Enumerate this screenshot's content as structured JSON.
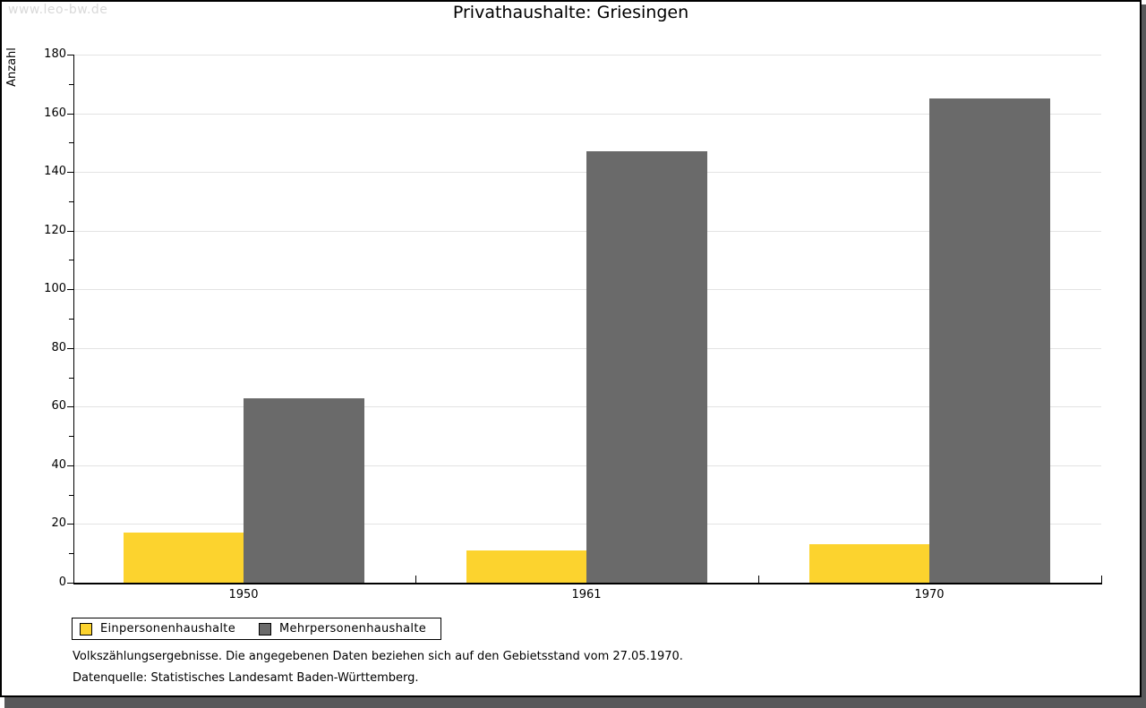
{
  "watermark": "www.leo-bw.de",
  "chart_data": {
    "type": "bar",
    "title": "Privathaushalte: Griesingen",
    "ylabel": "Anzahl",
    "xlabel": "",
    "categories": [
      "1950",
      "1961",
      "1970"
    ],
    "series": [
      {
        "name": "Einpersonenhaushalte",
        "color": "#fcd32e",
        "values": [
          17,
          11,
          13
        ]
      },
      {
        "name": "Mehrpersonenhaushalte",
        "color": "#6a6a6a",
        "values": [
          63,
          147,
          165
        ]
      }
    ],
    "ylim": [
      0,
      180
    ],
    "y_tick_step": 20,
    "y_minor_tick_step": 10,
    "grid": true,
    "legend_position": "bottom-left"
  },
  "footnotes": {
    "line1": "Volkszählungsergebnisse. Die angegebenen Daten beziehen sich auf den Gebietsstand vom 27.05.1970.",
    "line2": "Datenquelle: Statistisches Landesamt Baden-Württemberg."
  },
  "colors": {
    "frame_border": "#000000",
    "drop_shadow": "#58585a",
    "gridline": "#e3e3e3",
    "watermark_text": "#d9d9d9"
  }
}
